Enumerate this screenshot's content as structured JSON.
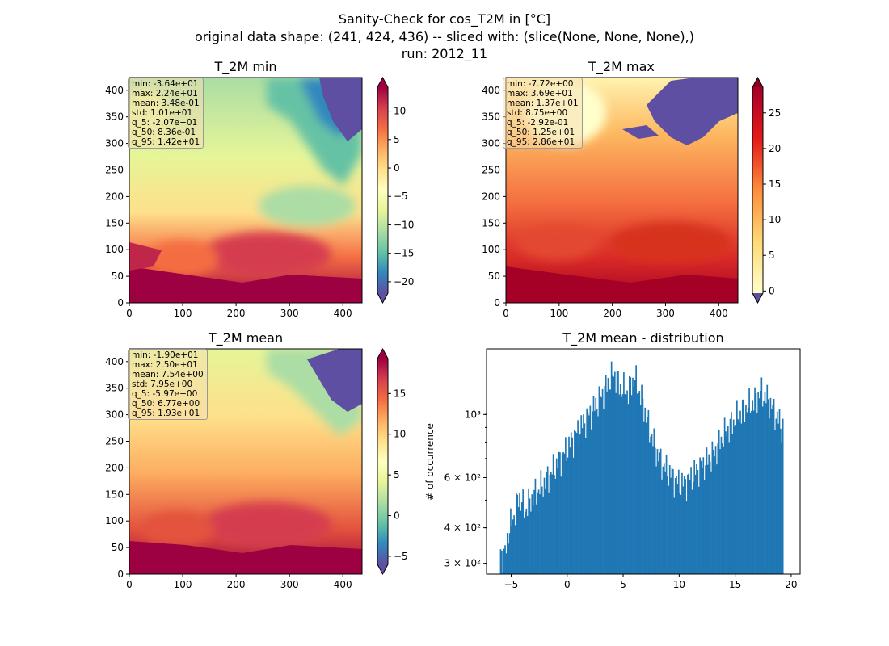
{
  "figure": {
    "title_lines": [
      "Sanity-Check for cos_T2M in [°C]",
      "original data shape: (241, 424, 436) -- sliced with: (slice(None, None, None),)",
      "run: 2012_11"
    ]
  },
  "colormap": {
    "name": "Spectral_r",
    "stops": [
      "#5e4fa2",
      "#3288bd",
      "#66c2a5",
      "#abdda4",
      "#e6f598",
      "#ffffbf",
      "#fee08b",
      "#fdae61",
      "#f46d43",
      "#d53e4f",
      "#9e0142"
    ]
  },
  "chart_data": [
    {
      "type": "heatmap",
      "title": "T_2M min",
      "xticks": [
        "0",
        "100",
        "200",
        "300",
        "400"
      ],
      "yticks": [
        "0",
        "50",
        "100",
        "150",
        "200",
        "250",
        "300",
        "350",
        "400"
      ],
      "xlim": [
        0,
        436
      ],
      "ylim": [
        0,
        424
      ],
      "colorbar": {
        "range": [
          -22,
          14.2
        ],
        "ticks": [
          "−20",
          "−15",
          "−10",
          "−5",
          "0",
          "5",
          "10"
        ],
        "tick_values": [
          -20,
          -15,
          -10,
          -5,
          0,
          5,
          10
        ],
        "extend": "both"
      },
      "stats": [
        "min: -3.64e+01",
        "max: 2.24e+01",
        "mean: 3.48e-01",
        "std: 1.01e+01",
        "q_5: -2.07e+01",
        "q_50: 8.36e-01",
        "q_95: 1.42e+01"
      ]
    },
    {
      "type": "heatmap",
      "title": "T_2M max",
      "xticks": [
        "0",
        "100",
        "200",
        "300",
        "400"
      ],
      "yticks": [
        "0",
        "50",
        "100",
        "150",
        "200",
        "250",
        "300",
        "350",
        "400"
      ],
      "xlim": [
        0,
        436
      ],
      "ylim": [
        0,
        424
      ],
      "colorbar": {
        "range": [
          -0.3,
          28.6
        ],
        "ticks": [
          "0",
          "5",
          "10",
          "15",
          "20",
          "25"
        ],
        "tick_values": [
          0,
          5,
          10,
          15,
          20,
          25
        ],
        "extend": "both",
        "cmap": "YlOrRd"
      },
      "stats": [
        "min: -7.72e+00",
        "max: 3.69e+01",
        "mean: 1.37e+01",
        "std: 8.75e+00",
        "q_5: -2.92e-01",
        "q_50: 1.25e+01",
        "q_95: 2.86e+01"
      ]
    },
    {
      "type": "heatmap",
      "title": "T_2M mean",
      "xticks": [
        "0",
        "100",
        "200",
        "300",
        "400"
      ],
      "yticks": [
        "0",
        "50",
        "100",
        "150",
        "200",
        "250",
        "300",
        "350",
        "400"
      ],
      "xlim": [
        0,
        436
      ],
      "ylim": [
        0,
        424
      ],
      "colorbar": {
        "range": [
          -6,
          19.3
        ],
        "ticks": [
          "−5",
          "0",
          "5",
          "10",
          "15"
        ],
        "tick_values": [
          -5,
          0,
          5,
          10,
          15
        ],
        "extend": "both"
      },
      "stats": [
        "min: -1.90e+01",
        "max: 2.50e+01",
        "mean: 7.54e+00",
        "std: 7.95e+00",
        "q_5: -5.97e+00",
        "q_50: 6.77e+00",
        "q_95: 1.93e+01"
      ]
    },
    {
      "type": "bar",
      "title": "T_2M mean - distribution",
      "ylabel": "# of occurrence",
      "yscale": "log",
      "xlim": [
        -7.2,
        20.8
      ],
      "ylim": [
        275,
        1700
      ],
      "xticks": [
        "−5",
        "0",
        "5",
        "10",
        "15",
        "20"
      ],
      "xtick_values": [
        -5,
        0,
        5,
        10,
        15,
        20
      ],
      "yticks": [
        {
          "label": "3 × 10²",
          "value": 300
        },
        {
          "label": "4 × 10²",
          "value": 400
        },
        {
          "label": "6 × 10²",
          "value": 600
        },
        {
          "label": "10³",
          "value": 1000
        }
      ],
      "color": "#1f77b4",
      "bin_start": -6.0,
      "bin_width": 0.1,
      "anchors": [
        [
          -6.0,
          340
        ],
        [
          -5.6,
          310
        ],
        [
          -5.3,
          380
        ],
        [
          -4.7,
          450
        ],
        [
          -4.3,
          520
        ],
        [
          -3.8,
          460
        ],
        [
          -3.0,
          520
        ],
        [
          -2.0,
          580
        ],
        [
          -1.0,
          660
        ],
        [
          0.0,
          760
        ],
        [
          1.0,
          880
        ],
        [
          2.0,
          1000
        ],
        [
          3.0,
          1150
        ],
        [
          3.7,
          1300
        ],
        [
          4.2,
          1400
        ],
        [
          4.7,
          1250
        ],
        [
          5.4,
          1200
        ],
        [
          6.0,
          1350
        ],
        [
          6.6,
          1150
        ],
        [
          7.3,
          900
        ],
        [
          8.0,
          730
        ],
        [
          8.6,
          660
        ],
        [
          9.2,
          620
        ],
        [
          9.8,
          580
        ],
        [
          10.4,
          570
        ],
        [
          11.0,
          600
        ],
        [
          11.6,
          640
        ],
        [
          12.4,
          680
        ],
        [
          13.2,
          740
        ],
        [
          14.0,
          850
        ],
        [
          15.0,
          960
        ],
        [
          15.8,
          1050
        ],
        [
          16.6,
          1100
        ],
        [
          17.3,
          1200
        ],
        [
          18.0,
          1120
        ],
        [
          18.6,
          1000
        ],
        [
          19.2,
          900
        ]
      ]
    }
  ]
}
